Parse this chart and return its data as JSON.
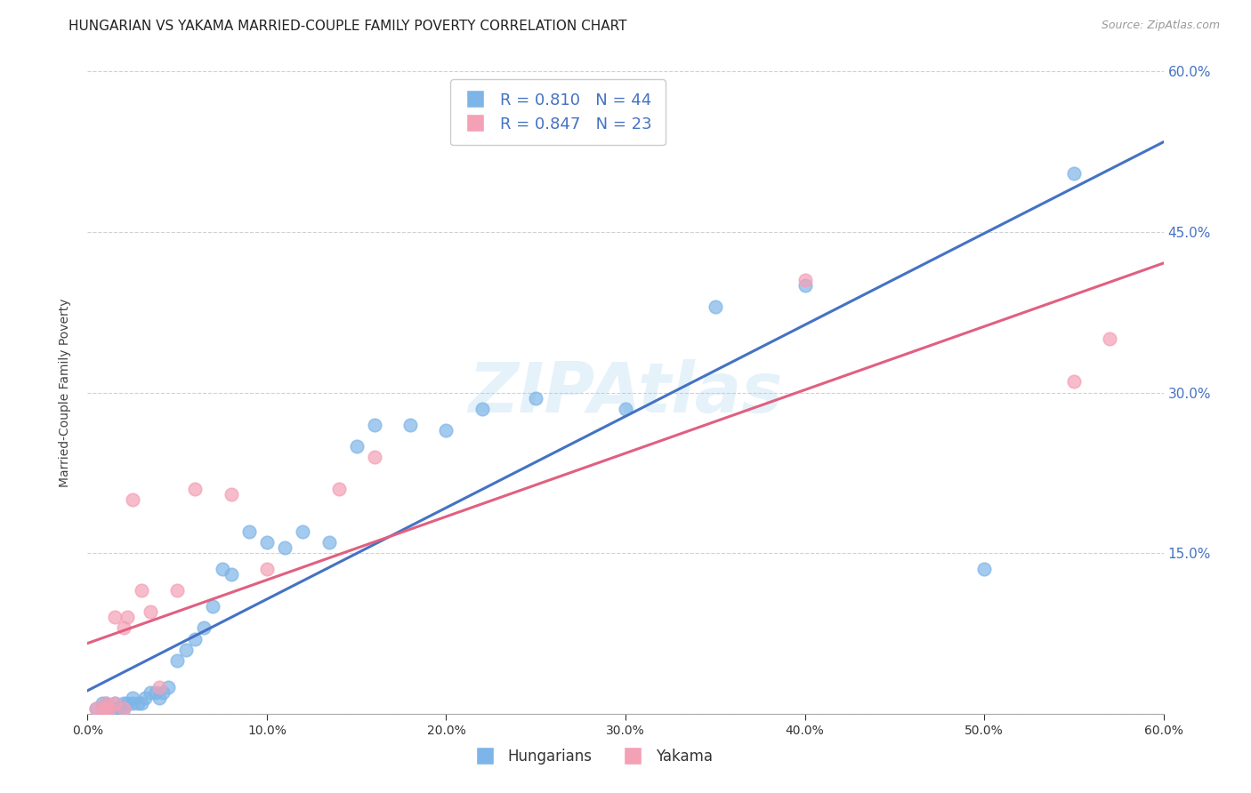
{
  "title": "HUNGARIAN VS YAKAMA MARRIED-COUPLE FAMILY POVERTY CORRELATION CHART",
  "source": "Source: ZipAtlas.com",
  "ylabel": "Married-Couple Family Poverty",
  "watermark": "ZIPAtlas",
  "xlim": [
    0,
    0.6
  ],
  "ylim": [
    0,
    0.6
  ],
  "x_ticks": [
    0.0,
    0.1,
    0.2,
    0.3,
    0.4,
    0.5,
    0.6
  ],
  "y_ticks": [
    0.0,
    0.15,
    0.3,
    0.45,
    0.6
  ],
  "hungarian_color": "#7eb5e8",
  "yakama_color": "#f4a0b5",
  "hungarian_line_color": "#4472c4",
  "yakama_line_color": "#e06080",
  "hungarian_R": 0.81,
  "hungarian_N": 44,
  "yakama_R": 0.847,
  "yakama_N": 23,
  "hungarian_x": [
    0.005,
    0.008,
    0.01,
    0.01,
    0.012,
    0.015,
    0.015,
    0.018,
    0.02,
    0.02,
    0.022,
    0.025,
    0.025,
    0.028,
    0.03,
    0.032,
    0.035,
    0.038,
    0.04,
    0.042,
    0.045,
    0.05,
    0.055,
    0.06,
    0.065,
    0.07,
    0.075,
    0.08,
    0.09,
    0.1,
    0.11,
    0.12,
    0.135,
    0.15,
    0.16,
    0.18,
    0.2,
    0.22,
    0.25,
    0.3,
    0.35,
    0.4,
    0.5,
    0.55
  ],
  "hungarian_y": [
    0.005,
    0.01,
    0.005,
    0.01,
    0.005,
    0.005,
    0.01,
    0.005,
    0.005,
    0.01,
    0.01,
    0.01,
    0.015,
    0.01,
    0.01,
    0.015,
    0.02,
    0.02,
    0.015,
    0.02,
    0.025,
    0.05,
    0.06,
    0.07,
    0.08,
    0.1,
    0.135,
    0.13,
    0.17,
    0.16,
    0.155,
    0.17,
    0.16,
    0.25,
    0.27,
    0.27,
    0.265,
    0.285,
    0.295,
    0.285,
    0.38,
    0.4,
    0.135,
    0.505
  ],
  "yakama_x": [
    0.005,
    0.008,
    0.01,
    0.01,
    0.012,
    0.015,
    0.015,
    0.02,
    0.02,
    0.022,
    0.025,
    0.03,
    0.035,
    0.04,
    0.05,
    0.06,
    0.08,
    0.1,
    0.14,
    0.16,
    0.4,
    0.55,
    0.57
  ],
  "yakama_y": [
    0.005,
    0.005,
    0.005,
    0.01,
    0.005,
    0.01,
    0.09,
    0.005,
    0.08,
    0.09,
    0.2,
    0.115,
    0.095,
    0.025,
    0.115,
    0.21,
    0.205,
    0.135,
    0.21,
    0.24,
    0.405,
    0.31,
    0.35
  ],
  "background_color": "#ffffff",
  "grid_color": "#cccccc",
  "title_fontsize": 11,
  "axis_label_fontsize": 10,
  "tick_fontsize": 10,
  "legend_fontsize": 13,
  "right_tick_color": "#4472c4"
}
